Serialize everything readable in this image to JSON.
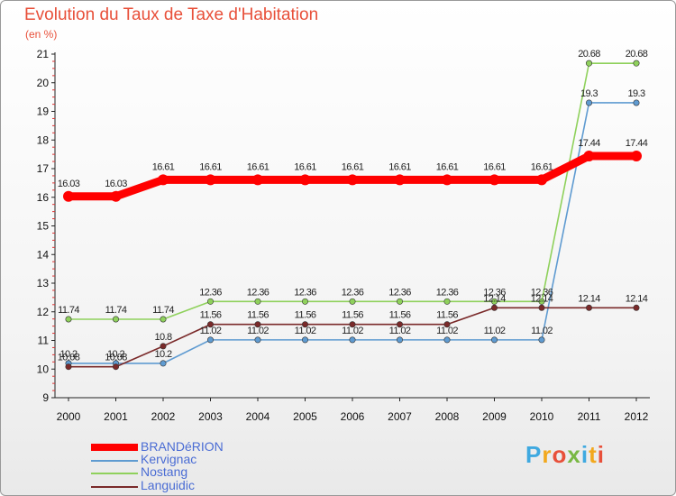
{
  "title": "Evolution du Taux de Taxe d'Habitation",
  "subtitle": "(en %)",
  "logo": {
    "text": "Proxiti",
    "colors": [
      "#3fa9e0",
      "#f2a81d",
      "#e8503a",
      "#79b843",
      "#3fa9e0",
      "#f2a81d",
      "#e8503a"
    ]
  },
  "chart_data": {
    "type": "line",
    "title": "Evolution du Taux de Taxe d'Habitation",
    "subtitle": "(en %)",
    "xlabel": "",
    "ylabel": "(en %)",
    "x": [
      "2000",
      "2001",
      "2002",
      "2003",
      "2004",
      "2005",
      "2006",
      "2007",
      "2008",
      "2009",
      "2010",
      "2011",
      "2012"
    ],
    "ylim": [
      9,
      21
    ],
    "yticks": [
      "9",
      "10",
      "11",
      "12",
      "13",
      "14",
      "15",
      "16",
      "17",
      "18",
      "19",
      "20",
      "21"
    ],
    "grid": false,
    "legend_position": "bottom-left",
    "series": [
      {
        "name": "BRANDéRION",
        "color": "#ff0000",
        "style": "thick",
        "values": [
          16.03,
          16.03,
          16.61,
          16.61,
          16.61,
          16.61,
          16.61,
          16.61,
          16.61,
          16.61,
          16.61,
          17.44,
          17.44
        ],
        "labels": [
          "16.03",
          "16.03",
          "16.61",
          "16.61",
          "16.61",
          "16.61",
          "16.61",
          "16.61",
          "16.61",
          "16.61",
          "16.61",
          "17.44",
          "17.44"
        ]
      },
      {
        "name": "Kervignac",
        "color": "#5f9bd1",
        "style": "thin",
        "values": [
          10.2,
          10.2,
          10.2,
          11.02,
          11.02,
          11.02,
          11.02,
          11.02,
          11.02,
          11.02,
          11.02,
          19.3,
          19.3
        ],
        "labels": [
          "10.2",
          "10.2",
          "10.2",
          "11.02",
          "11.02",
          "11.02",
          "11.02",
          "11.02",
          "11.02",
          "11.02",
          "11.02",
          "19.3",
          "19.3"
        ]
      },
      {
        "name": "Nostang",
        "color": "#8fd15c",
        "style": "thin",
        "values": [
          11.74,
          11.74,
          11.74,
          12.36,
          12.36,
          12.36,
          12.36,
          12.36,
          12.36,
          12.36,
          12.36,
          20.68,
          20.68
        ],
        "labels": [
          "11.74",
          "11.74",
          "11.74",
          "12.36",
          "12.36",
          "12.36",
          "12.36",
          "12.36",
          "12.36",
          "12.36",
          "12.36",
          "20.68",
          "20.68"
        ]
      },
      {
        "name": "Languidic",
        "color": "#7a2a2a",
        "style": "thin",
        "values": [
          10.08,
          10.08,
          10.8,
          11.56,
          11.56,
          11.56,
          11.56,
          11.56,
          11.56,
          12.14,
          12.14,
          12.14,
          12.14
        ],
        "labels": [
          "10.08",
          "10.08",
          "10.8",
          "11.56",
          "11.56",
          "11.56",
          "11.56",
          "11.56",
          "11.56",
          "12.14",
          "12.14",
          "12.14",
          "12.14"
        ]
      }
    ]
  }
}
